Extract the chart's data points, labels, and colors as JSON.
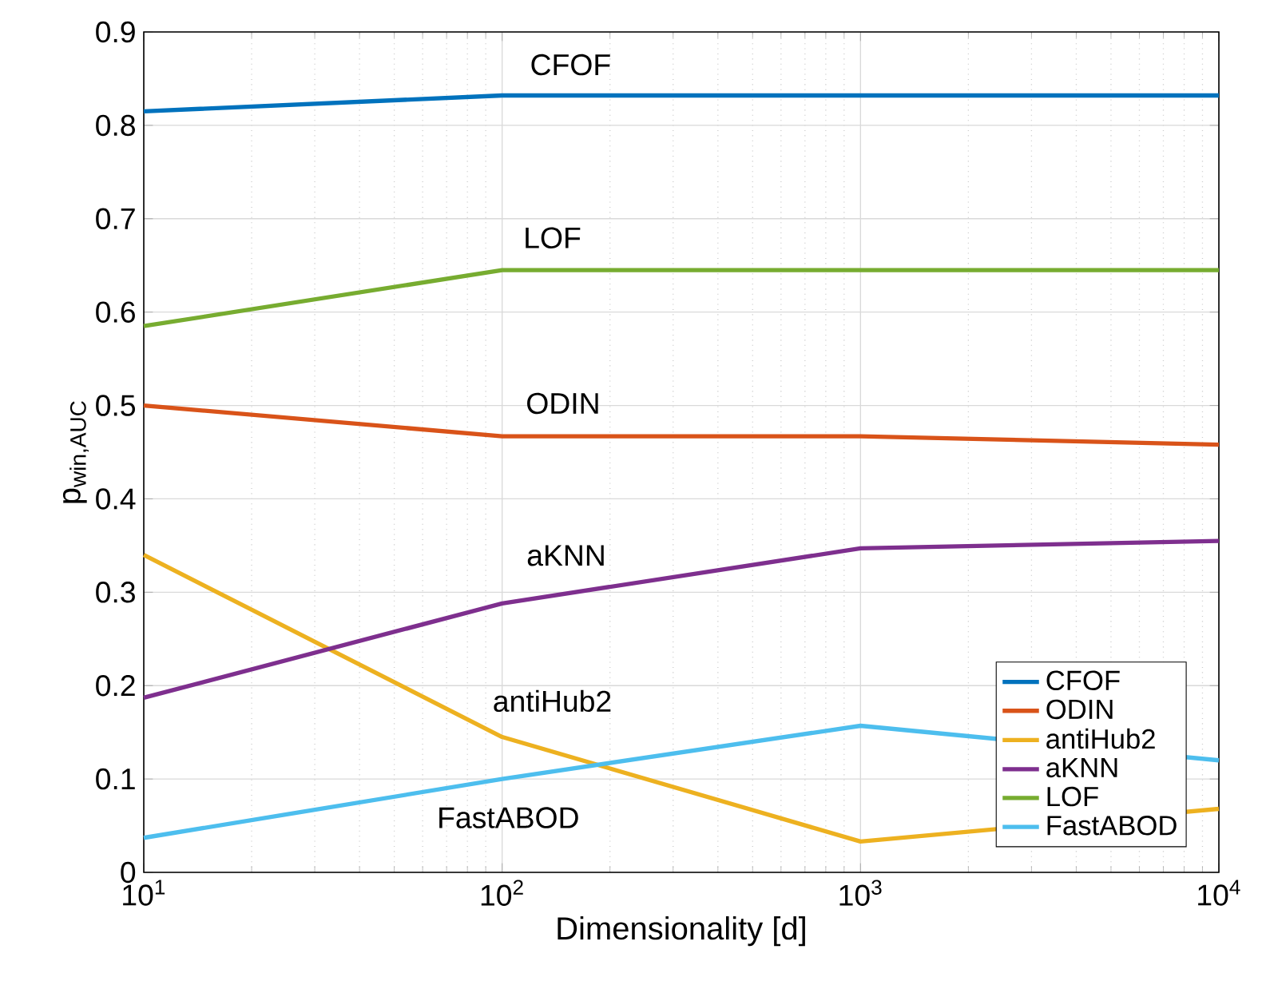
{
  "chart_data": {
    "type": "line",
    "xlabel": "Dimensionality [d]",
    "ylabel": "p$_{win,AUC}$",
    "x": [
      10,
      100,
      1000,
      10000
    ],
    "log": "x",
    "xlim": [
      10,
      10000
    ],
    "xticks": [
      {
        "value": 10,
        "label": "10$^{1}$"
      },
      {
        "value": 100,
        "label": "10$^{2}$"
      },
      {
        "value": 1000,
        "label": "10$^{3}$"
      },
      {
        "value": 10000,
        "label": "10$^{4}$"
      }
    ],
    "ylim": [
      0,
      0.9
    ],
    "yticks": [
      0,
      0.1,
      0.2,
      0.3,
      0.4,
      0.5,
      0.6,
      0.7,
      0.8,
      0.9
    ],
    "grid": true,
    "legend": "bottom right",
    "marker": "none",
    "line_style": "solid",
    "series": [
      {
        "name": "CFOF",
        "color": "#0072bd",
        "values": [
          0.815,
          0.832,
          0.832,
          0.832
        ]
      },
      {
        "name": "ODIN",
        "color": "#d95319",
        "values": [
          0.5,
          0.467,
          0.467,
          0.458
        ]
      },
      {
        "name": "antiHub2",
        "color": "#edb120",
        "values": [
          0.34,
          0.145,
          0.033,
          0.068
        ]
      },
      {
        "name": "aKNN",
        "color": "#7e2f8e",
        "values": [
          0.187,
          0.288,
          0.347,
          0.355
        ]
      },
      {
        "name": "LOF",
        "color": "#77ac30",
        "values": [
          0.585,
          0.645,
          0.645,
          0.645
        ]
      },
      {
        "name": "FastABOD",
        "color": "#4dbeee",
        "values": [
          0.037,
          0.1,
          0.157,
          0.12
        ]
      }
    ],
    "annotations": [
      "CFOF",
      "LOF",
      "ODIN",
      "aKNN",
      "antiHub2",
      "FastABOD"
    ]
  }
}
